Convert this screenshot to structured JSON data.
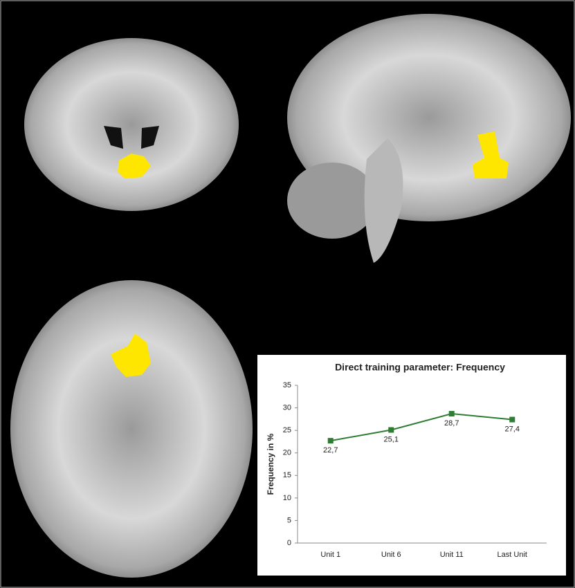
{
  "chart_data": {
    "type": "line",
    "title": "Direct training parameter: Frequency",
    "y_label": "Frequency in %",
    "categories": [
      "Unit 1",
      "Unit 6",
      "Unit 11",
      "Last Unit"
    ],
    "values": [
      22.7,
      25.1,
      28.7,
      27.4
    ],
    "value_labels": [
      "22,7",
      "25,1",
      "28,7",
      "27,4"
    ],
    "color": "#2e7d32",
    "ylim": [
      0,
      35
    ],
    "yticks": [
      0,
      5,
      10,
      15,
      20,
      25,
      30,
      35
    ],
    "grid": false
  }
}
